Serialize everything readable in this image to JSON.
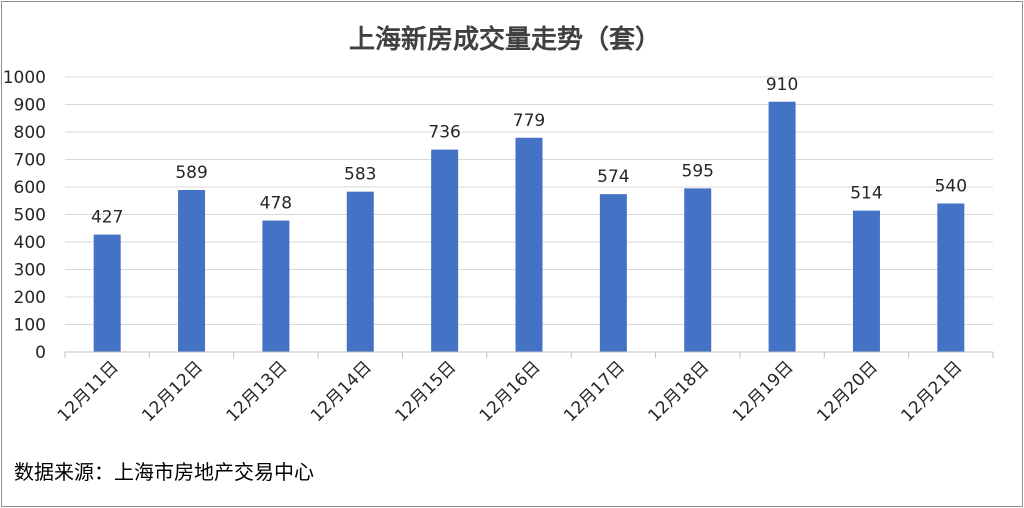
{
  "chart_data": {
    "type": "bar",
    "title": "上海新房成交量走势（套）",
    "categories": [
      "12月11日",
      "12月12日",
      "12月13日",
      "12月14日",
      "12月15日",
      "12月16日",
      "12月17日",
      "12月18日",
      "12月19日",
      "12月20日",
      "12月21日"
    ],
    "values": [
      427,
      589,
      478,
      583,
      736,
      779,
      574,
      595,
      910,
      514,
      540
    ],
    "ylim": [
      0,
      1000
    ],
    "yticks": [
      0,
      100,
      200,
      300,
      400,
      500,
      600,
      700,
      800,
      900,
      1000
    ],
    "xlabel": "",
    "ylabel": "",
    "grid": true,
    "legend": "none",
    "bar_color": "#4472c4",
    "grid_color": "#d9d9d9"
  },
  "source_note": "数据来源：上海市房地产交易中心"
}
